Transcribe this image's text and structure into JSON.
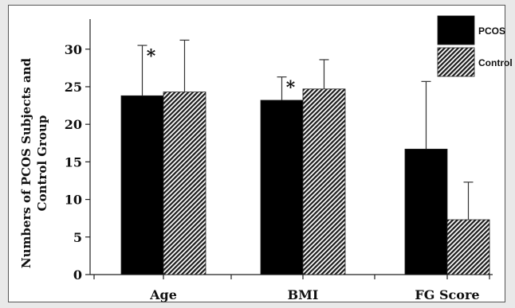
{
  "chart_data": {
    "type": "bar",
    "categories": [
      "Age",
      "BMI",
      "FG Score"
    ],
    "series": [
      {
        "name": "PCOS",
        "values": [
          23.8,
          23.2,
          16.7
        ],
        "errors": [
          6.7,
          3.1,
          9.0
        ],
        "annotations": [
          "*",
          "*",
          ""
        ]
      },
      {
        "name": "Control",
        "values": [
          24.3,
          24.7,
          7.3
        ],
        "errors": [
          6.9,
          3.9,
          5.0
        ],
        "annotations": [
          "",
          "",
          ""
        ]
      }
    ],
    "ylabel": "Numbers of PCOS Subjects and Control Group",
    "ylabel_lines": [
      "Numbers of PCOS Subjects and",
      "Control Group"
    ],
    "ylim": [
      0,
      34
    ],
    "yticks": [
      0,
      5,
      10,
      15,
      20,
      25,
      30
    ],
    "legend": {
      "position": "top-right"
    },
    "colors": {
      "PCOS": "#000000",
      "Control": "hatched-gray"
    },
    "grid": false
  }
}
